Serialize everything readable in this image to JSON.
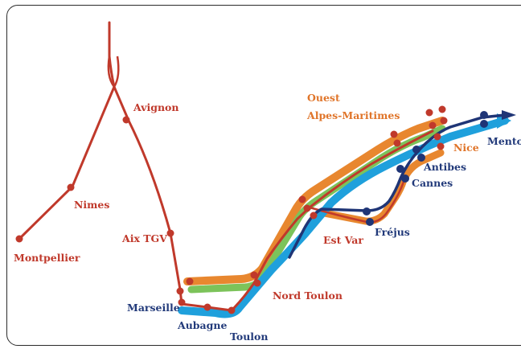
{
  "colors": {
    "red": "#c0392b",
    "orange": "#e8872f",
    "green": "#7cc35a",
    "blue": "#1fa0dc",
    "navy": "#1f3576",
    "orange_text": "#e0752a"
  },
  "labels": {
    "avignon": "Avignon",
    "nimes": "Nimes",
    "montpellier": "Montpellier",
    "aix_tgv": "Aix TGV",
    "marseille": "Marseille",
    "aubagne": "Aubagne",
    "toulon": "Toulon",
    "nord_toulon": "Nord Toulon",
    "est_var": "Est Var",
    "ouest_am_line1": "Ouest",
    "ouest_am_line2": "Alpes-Maritimes",
    "frejus": "Fréjus",
    "cannes": "Cannes",
    "antibes": "Antibes",
    "nice": "Nice",
    "menton": "Menton"
  }
}
